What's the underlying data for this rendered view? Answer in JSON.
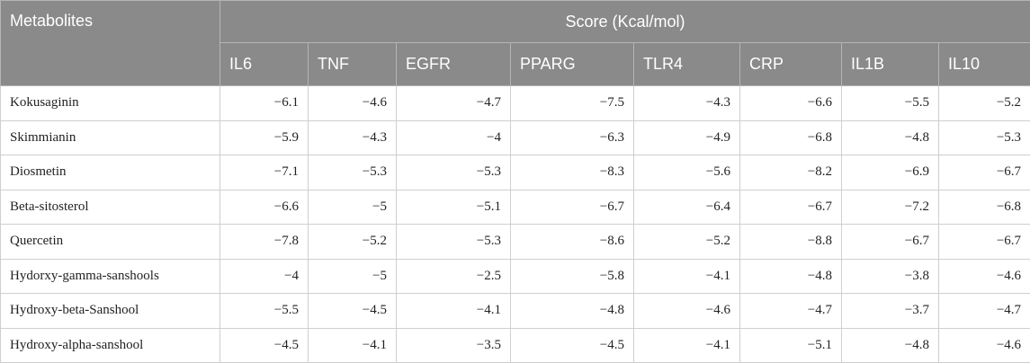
{
  "table": {
    "first_header": "Metabolites",
    "group_header": "Score (Kcal/mol)",
    "columns": [
      "IL6",
      "TNF",
      "EGFR",
      "PPARG",
      "TLR4",
      "CRP",
      "IL1B",
      "IL10"
    ],
    "rows": [
      [
        "Kokusaginin",
        "−6.1",
        "−4.6",
        "−4.7",
        "−7.5",
        "−4.3",
        "−6.6",
        "−5.5",
        "−5.2"
      ],
      [
        "Skimmianin",
        "−5.9",
        "−4.3",
        "−4",
        "−6.3",
        "−4.9",
        "−6.8",
        "−4.8",
        "−5.3"
      ],
      [
        "Diosmetin",
        "−7.1",
        "−5.3",
        "−5.3",
        "−8.3",
        "−5.6",
        "−8.2",
        "−6.9",
        "−6.7"
      ],
      [
        "Beta-sitosterol",
        "−6.6",
        "−5",
        "−5.1",
        "−6.7",
        "−6.4",
        "−6.7",
        "−7.2",
        "−6.8"
      ],
      [
        "Quercetin",
        "−7.8",
        "−5.2",
        "−5.3",
        "−8.6",
        "−5.2",
        "−8.8",
        "−6.7",
        "−6.7"
      ],
      [
        "Hydorxy-gamma-sanshools",
        "−4",
        "−5",
        "−2.5",
        "−5.8",
        "−4.1",
        "−4.8",
        "−3.8",
        "−4.6"
      ],
      [
        "Hydroxy-beta-Sanshool",
        "−5.5",
        "−4.5",
        "−4.1",
        "−4.8",
        "−4.6",
        "−4.7",
        "−3.7",
        "−4.7"
      ],
      [
        "Hydroxy-alpha-sanshool",
        "−4.5",
        "−4.1",
        "−3.5",
        "−4.5",
        "−4.1",
        "−5.1",
        "−4.8",
        "−4.6"
      ]
    ]
  }
}
